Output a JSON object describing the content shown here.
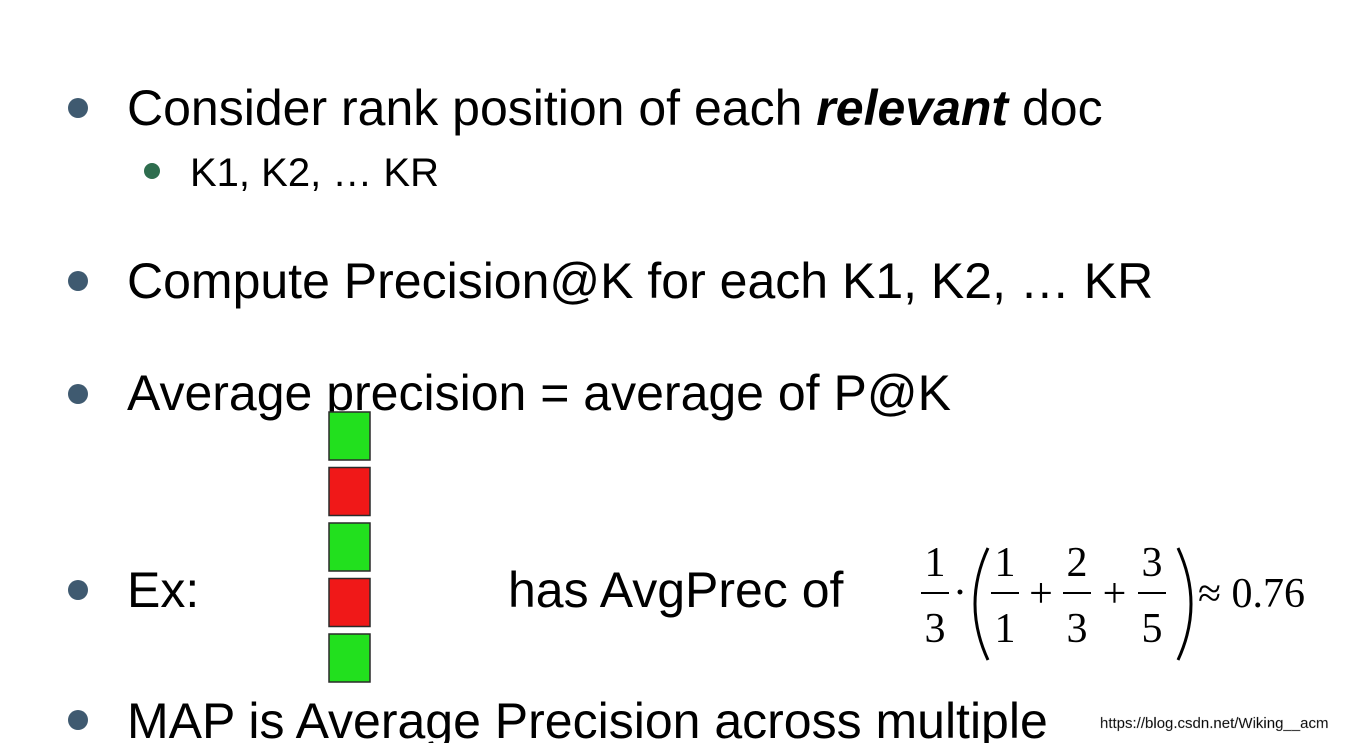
{
  "slide": {
    "bullets": [
      {
        "parts": [
          "Consider rank position of each ",
          "relevant",
          " doc"
        ],
        "sub_bullets": [
          "K1, K2, … KR"
        ]
      },
      {
        "text": "Compute Precision@K for each K1, K2, … KR"
      },
      {
        "text": "Average precision = average of P@K"
      },
      {
        "lead": "Ex:",
        "middle": "has AvgPrec of",
        "ranking_box_colors": [
          "#22e01e",
          "#f01818",
          "#22e01e",
          "#f01818",
          "#22e01e"
        ],
        "formula": {
          "outer": {
            "num": "1",
            "den": "3"
          },
          "dot": "·",
          "terms": [
            {
              "num": "1",
              "den": "1"
            },
            {
              "num": "2",
              "den": "3"
            },
            {
              "num": "3",
              "den": "5"
            }
          ],
          "plus": "+",
          "result": "≈ 0.76"
        }
      },
      {
        "text": "MAP is Average Precision across multiple"
      }
    ],
    "watermark": "https://blog.csdn.net/Wiking__acm"
  }
}
